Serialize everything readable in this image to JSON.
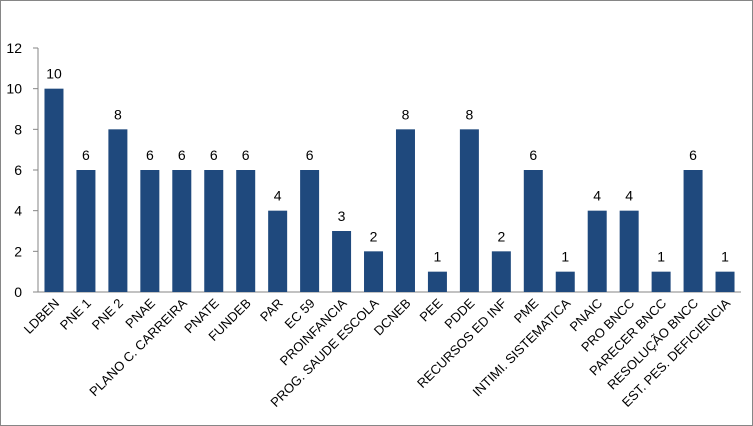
{
  "chart_data": {
    "type": "bar",
    "categories": [
      "LDBEN",
      "PNE 1",
      "PNE 2",
      "PNAE",
      "PLANO C. CARREIRA",
      "PNATE",
      "FUNDEB",
      "PAR",
      "EC 59",
      "PROINFANCIA",
      "PROG. SAUDE ESCOLA",
      "DCNEB",
      "PEE",
      "PDDE",
      "RECURSOS ED INF",
      "PME",
      "INTIMI. SISTEMATICA",
      "PNAIC",
      "PRO BNCC",
      "PARECER BNCC",
      "RESOLUÇÃO BNCC",
      "EST. PES. DEFICIENCIA"
    ],
    "values": [
      10,
      6,
      8,
      6,
      6,
      6,
      6,
      4,
      6,
      3,
      2,
      8,
      1,
      8,
      2,
      6,
      1,
      4,
      4,
      1,
      6,
      1
    ],
    "ylim": [
      0,
      12
    ],
    "yticks": [
      0,
      2,
      4,
      6,
      8,
      10,
      12
    ],
    "grid": false,
    "data_labels": true,
    "bar_color": "#1F497D"
  }
}
